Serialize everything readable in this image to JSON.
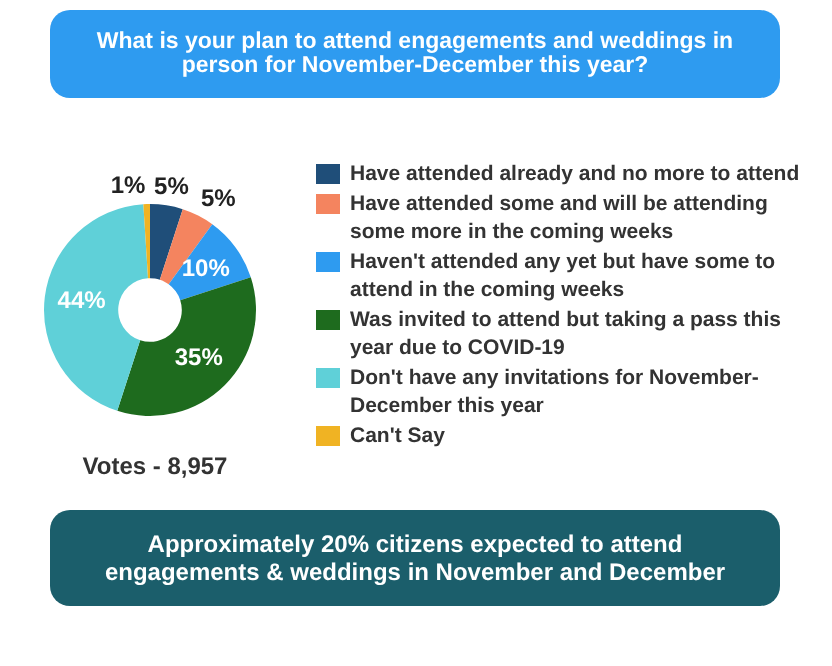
{
  "chart_data": {
    "type": "donut",
    "title": "What is your plan to attend engagements and weddings in person for November-December this year?",
    "subtitle": "Approximately 20% citizens expected to attend engagements & weddings in November and December",
    "categories": [
      "Have attended already and no more to attend",
      "Have attended some and will be attending some more in the coming weeks",
      "Haven't attended any yet but have some to attend in the coming weeks",
      "Was invited to attend but taking a pass this year due to COVID-19",
      "Don't have any invitations for November-December this year",
      "Can't Say"
    ],
    "values": [
      5,
      5,
      10,
      35,
      44,
      1
    ],
    "colors": [
      "#1f4e79",
      "#f4845f",
      "#2e9bf0",
      "#1e6b1e",
      "#5fd0d8",
      "#f0b323"
    ],
    "value_labels": [
      "5%",
      "5%",
      "10%",
      "35%",
      "44%",
      "1%"
    ],
    "annotations": [
      "Votes - 8,957"
    ],
    "legend": "right"
  }
}
